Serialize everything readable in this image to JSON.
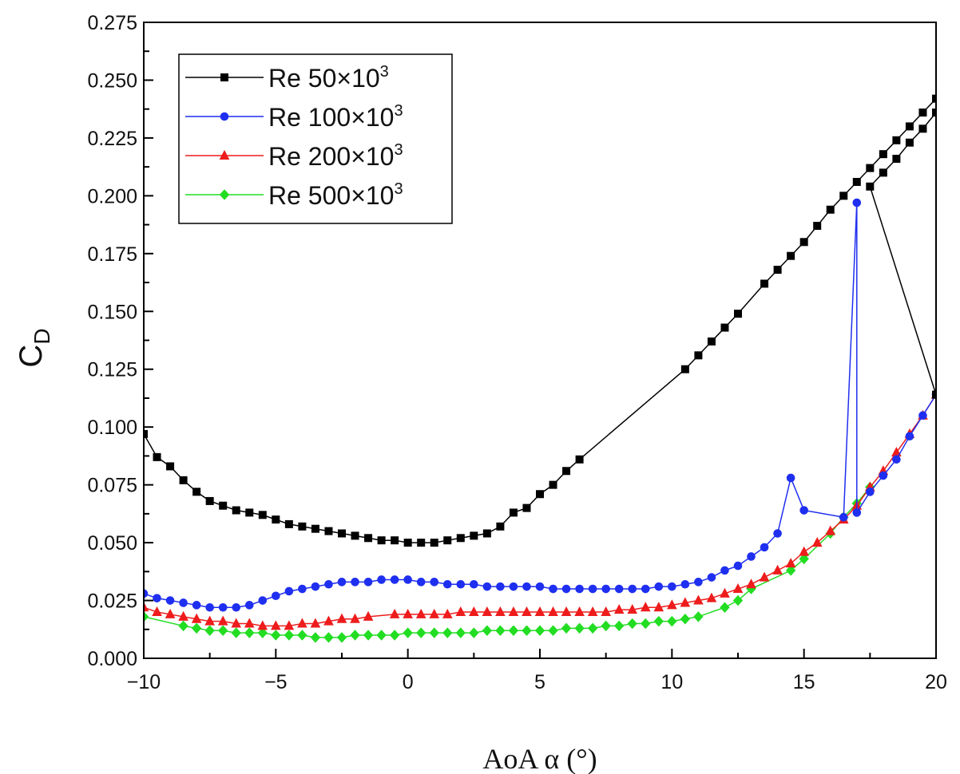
{
  "chart_data": {
    "type": "line",
    "title": "",
    "xlabel": "AoA α (°)",
    "ylabel": {
      "main": "C",
      "sub": "D"
    },
    "xlim": [
      -10,
      20
    ],
    "ylim": [
      0,
      0.275
    ],
    "xticks": [
      -10,
      -5,
      0,
      5,
      10,
      15,
      20
    ],
    "xtick_labels": [
      "−10",
      "−5",
      "0",
      "5",
      "10",
      "15",
      "20"
    ],
    "yticks": [
      0,
      0.025,
      0.05,
      0.075,
      0.1,
      0.125,
      0.15,
      0.175,
      0.2,
      0.225,
      0.25,
      0.275
    ],
    "ytick_labels": [
      "0.000",
      "0.025",
      "0.050",
      "0.075",
      "0.100",
      "0.125",
      "0.150",
      "0.175",
      "0.200",
      "0.225",
      "0.250",
      "0.275"
    ],
    "grid": false,
    "legend_position": "top-left",
    "series": [
      {
        "name": "Re 50×10",
        "name_sup": "3",
        "color": "#000000",
        "marker": "square",
        "x": [
          -10,
          -9.5,
          -9,
          -8.5,
          -8,
          -7.5,
          -7,
          -6.5,
          -6,
          -5.5,
          -5,
          -4.5,
          -4,
          -3.5,
          -3,
          -2.5,
          -2,
          -1.5,
          -1,
          -0.5,
          0,
          0.5,
          1,
          1.5,
          2,
          2.5,
          3,
          3.5,
          4,
          4.5,
          5,
          5.5,
          6,
          6.5,
          10.5,
          11,
          11.5,
          12,
          12.5,
          13.5,
          14,
          14.5,
          15,
          15.5,
          16,
          16.5,
          17,
          17.5,
          18,
          18.5,
          19,
          19.5,
          20,
          20,
          19.5,
          19,
          18.5,
          18,
          17.5,
          20
        ],
        "y": [
          0.097,
          0.087,
          0.083,
          0.077,
          0.072,
          0.068,
          0.066,
          0.064,
          0.063,
          0.062,
          0.06,
          0.058,
          0.057,
          0.056,
          0.055,
          0.054,
          0.053,
          0.052,
          0.051,
          0.051,
          0.05,
          0.05,
          0.05,
          0.051,
          0.052,
          0.053,
          0.054,
          0.057,
          0.063,
          0.065,
          0.071,
          0.075,
          0.081,
          0.086,
          0.125,
          0.131,
          0.137,
          0.143,
          0.149,
          0.162,
          0.168,
          0.174,
          0.18,
          0.187,
          0.194,
          0.2,
          0.206,
          0.212,
          0.218,
          0.224,
          0.23,
          0.236,
          0.242,
          0.236,
          0.229,
          0.223,
          0.216,
          0.21,
          0.204,
          0.114
        ]
      },
      {
        "name": "Re 100×10",
        "name_sup": "3",
        "color": "#1f2ff0",
        "marker": "circle",
        "x": [
          -10,
          -9.5,
          -9,
          -8.5,
          -8,
          -7.5,
          -7,
          -6.5,
          -6,
          -5.5,
          -5,
          -4.5,
          -4,
          -3.5,
          -3,
          -2.5,
          -2,
          -1.5,
          -1,
          -0.5,
          0,
          0.5,
          1,
          1.5,
          2,
          2.5,
          3,
          3.5,
          4,
          4.5,
          5,
          5.5,
          6,
          6.5,
          7,
          7.5,
          8,
          8.5,
          9,
          9.5,
          10,
          10.5,
          11,
          11.5,
          12,
          12.5,
          13,
          13.5,
          14,
          14.5,
          15,
          16.5,
          17,
          17,
          17.5,
          18,
          18.5,
          19,
          19.5,
          20
        ],
        "y": [
          0.028,
          0.026,
          0.025,
          0.024,
          0.023,
          0.022,
          0.022,
          0.022,
          0.023,
          0.025,
          0.027,
          0.029,
          0.03,
          0.031,
          0.032,
          0.033,
          0.033,
          0.033,
          0.034,
          0.034,
          0.034,
          0.033,
          0.033,
          0.032,
          0.032,
          0.032,
          0.031,
          0.031,
          0.031,
          0.031,
          0.031,
          0.03,
          0.03,
          0.03,
          0.03,
          0.03,
          0.03,
          0.03,
          0.03,
          0.031,
          0.031,
          0.032,
          0.033,
          0.035,
          0.038,
          0.04,
          0.044,
          0.048,
          0.054,
          0.078,
          0.064,
          0.061,
          0.197,
          0.063,
          0.072,
          0.079,
          0.086,
          0.096,
          0.105,
          0.114
        ]
      },
      {
        "name": "Re 200×10",
        "name_sup": "3",
        "color": "#ee1c1c",
        "marker": "triangle",
        "x": [
          -10,
          -9.5,
          -9,
          -8.5,
          -8,
          -7.5,
          -7,
          -6.5,
          -6,
          -5.5,
          -5,
          -4.5,
          -4,
          -3.5,
          -3,
          -2.5,
          -2,
          -1.5,
          -0.5,
          0,
          0.5,
          1,
          1.5,
          2,
          2.5,
          3,
          3.5,
          4,
          4.5,
          5,
          5.5,
          6,
          6.5,
          7,
          7.5,
          8,
          8.5,
          9,
          9.5,
          10,
          10.5,
          11,
          11.5,
          12,
          12.5,
          13,
          13.5,
          14,
          14.5,
          15,
          15.5,
          16,
          16.5,
          17,
          17.5,
          18,
          18.5,
          19,
          19.5,
          20
        ],
        "y": [
          0.022,
          0.02,
          0.019,
          0.018,
          0.017,
          0.016,
          0.016,
          0.015,
          0.015,
          0.014,
          0.014,
          0.014,
          0.015,
          0.015,
          0.016,
          0.017,
          0.017,
          0.018,
          0.019,
          0.019,
          0.019,
          0.019,
          0.019,
          0.02,
          0.02,
          0.02,
          0.02,
          0.02,
          0.02,
          0.02,
          0.02,
          0.02,
          0.02,
          0.02,
          0.02,
          0.021,
          0.021,
          0.022,
          0.022,
          0.023,
          0.024,
          0.025,
          0.026,
          0.028,
          0.03,
          0.032,
          0.035,
          0.038,
          0.041,
          0.046,
          0.05,
          0.055,
          0.06,
          0.066,
          0.074,
          0.081,
          0.089,
          0.097,
          0.105,
          0.114
        ]
      },
      {
        "name": "Re 500×10",
        "name_sup": "3",
        "color": "#22dd22",
        "marker": "diamond",
        "x": [
          -10,
          -8.5,
          -8,
          -7.5,
          -7,
          -6.5,
          -6,
          -5.5,
          -5,
          -4.5,
          -4,
          -3.5,
          -3,
          -2.5,
          -2,
          -1.5,
          -1,
          -0.5,
          0,
          0.5,
          1,
          1.5,
          2,
          2.5,
          3,
          3.5,
          4,
          4.5,
          5,
          5.5,
          6,
          6.5,
          7,
          7.5,
          8,
          8.5,
          9,
          9.5,
          10,
          10.5,
          11,
          12,
          12.5,
          13,
          14.5,
          15,
          16,
          16.5,
          17,
          17.5
        ],
        "y": [
          0.018,
          0.014,
          0.013,
          0.012,
          0.012,
          0.011,
          0.011,
          0.011,
          0.01,
          0.01,
          0.01,
          0.009,
          0.009,
          0.009,
          0.01,
          0.01,
          0.01,
          0.01,
          0.011,
          0.011,
          0.011,
          0.011,
          0.011,
          0.011,
          0.012,
          0.012,
          0.012,
          0.012,
          0.012,
          0.012,
          0.013,
          0.013,
          0.013,
          0.014,
          0.014,
          0.015,
          0.015,
          0.016,
          0.016,
          0.017,
          0.018,
          0.022,
          0.025,
          0.03,
          0.038,
          0.043,
          0.054,
          0.061,
          0.067,
          0.074
        ]
      }
    ]
  }
}
